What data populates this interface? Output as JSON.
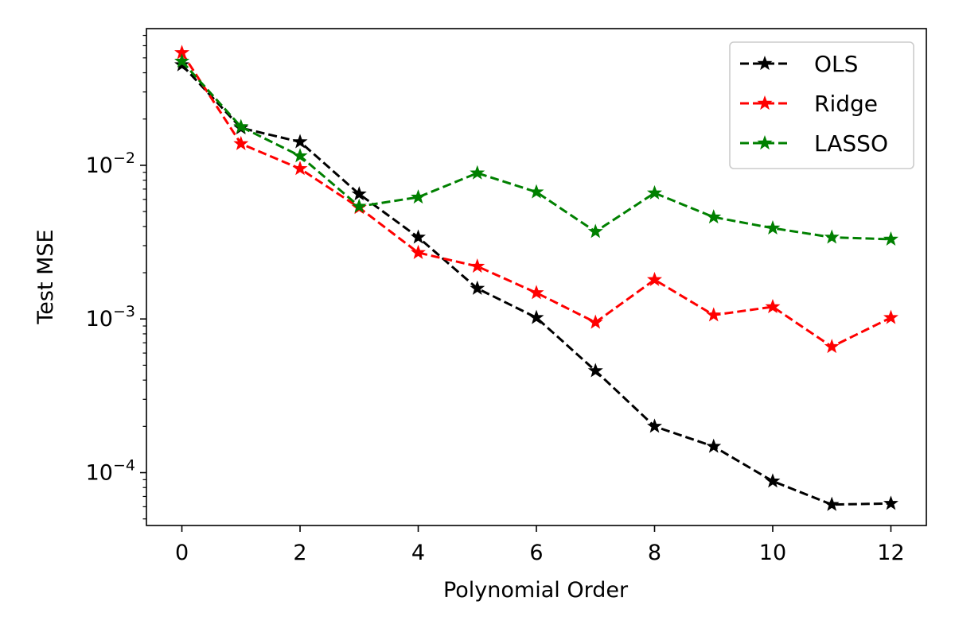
{
  "chart_data": {
    "type": "line",
    "xlabel": "Polynomial Order",
    "ylabel": "Test MSE",
    "yscale": "log",
    "xlim": [
      -0.6,
      12.6
    ],
    "ylim": [
      4.53e-05,
      0.0775
    ],
    "grid": false,
    "legend_position": "top-right",
    "x": [
      0,
      1,
      2,
      3,
      4,
      5,
      6,
      7,
      8,
      9,
      10,
      11,
      12
    ],
    "xticks": [
      0,
      2,
      4,
      6,
      8,
      10,
      12
    ],
    "xtick_labels": [
      "0",
      "2",
      "4",
      "6",
      "8",
      "10",
      "12"
    ],
    "yticks": [
      0.0001,
      0.001,
      0.01
    ],
    "ytick_bases": [
      "10",
      "10",
      "10"
    ],
    "ytick_exponents": [
      "−4",
      "−3",
      "−2"
    ],
    "series": [
      {
        "name": "OLS",
        "color": "#000000",
        "marker": "star",
        "linestyle": "dashed",
        "values": [
          0.045,
          0.0175,
          0.0142,
          0.0065,
          0.0034,
          0.00158,
          0.00102,
          0.00046,
          0.0002,
          0.000148,
          8.8e-05,
          6.2e-05,
          6.3e-05
        ]
      },
      {
        "name": "Ridge",
        "color": "#ff0000",
        "marker": "star",
        "linestyle": "dashed",
        "values": [
          0.054,
          0.0138,
          0.0095,
          0.0053,
          0.0027,
          0.0022,
          0.00148,
          0.00095,
          0.0018,
          0.00106,
          0.0012,
          0.00066,
          0.00102
        ]
      },
      {
        "name": "LASSO",
        "color": "#008000",
        "marker": "star",
        "linestyle": "dashed",
        "values": [
          0.0475,
          0.0178,
          0.0115,
          0.0054,
          0.0062,
          0.0089,
          0.0067,
          0.0037,
          0.0066,
          0.0046,
          0.0039,
          0.0034,
          0.0033
        ]
      }
    ]
  }
}
